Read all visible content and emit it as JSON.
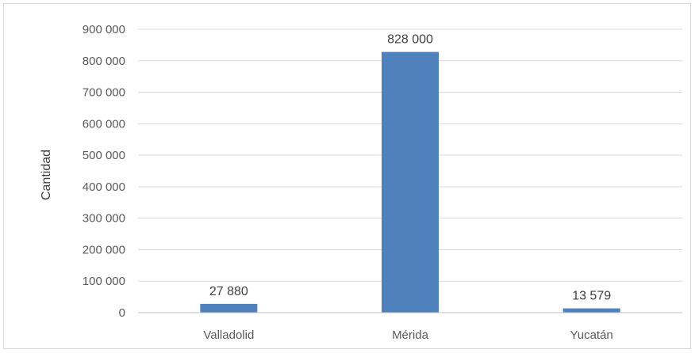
{
  "chart_data": {
    "type": "bar",
    "title": "",
    "xlabel": "",
    "ylabel": "Cantidad",
    "categories": [
      "Valladolid",
      "Mérida",
      "Yucatán"
    ],
    "values": [
      27880,
      828000,
      13579
    ],
    "value_labels": [
      "27 880",
      "828 000",
      "13 579"
    ],
    "ylim": [
      0,
      900000
    ],
    "yticks": [
      0,
      100000,
      200000,
      300000,
      400000,
      500000,
      600000,
      700000,
      800000,
      900000
    ],
    "ytick_labels": [
      "0",
      "100 000",
      "200 000",
      "300 000",
      "400 000",
      "500 000",
      "600 000",
      "700 000",
      "800 000",
      "900 000"
    ],
    "grid": true,
    "legend": "none",
    "colors": {
      "bar": "#4f81bd",
      "grid": "#d9d9d9",
      "axis": "#bfbfbf"
    }
  }
}
